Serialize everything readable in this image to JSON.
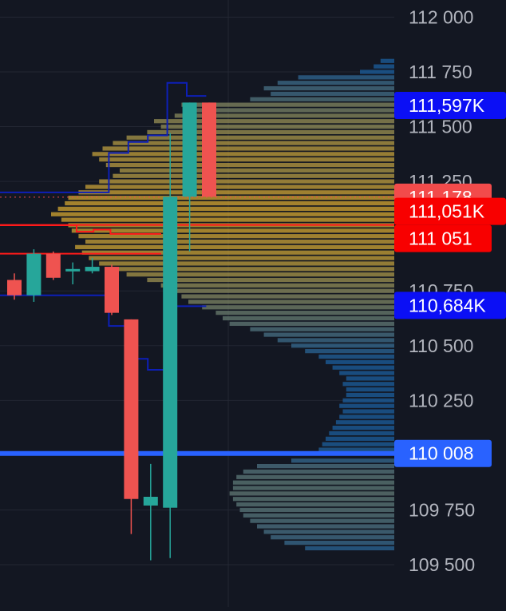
{
  "chart_data": {
    "type": "candlestick",
    "colors": {
      "background": "#131722",
      "grid": "#232733",
      "axis_text": "#b2b5be",
      "up": "#26a69a",
      "down": "#ef5350",
      "profile_high": "#d4a731",
      "profile_low": "#1c5f9e",
      "upper_band": "#0d1fb8",
      "lower_band": "#ff1a1a",
      "support_line": "#2962ff",
      "label_blue": "#0b0ff5",
      "label_red": "#f80000",
      "label_last": "#f24b4b",
      "label_support": "#2962ff"
    },
    "y_axis": {
      "range": [
        109480,
        112000
      ],
      "ticks": [
        {
          "value": 112000,
          "label": "112 000"
        },
        {
          "value": 111750,
          "label": "111 750"
        },
        {
          "value": 111500,
          "label": "111 500"
        },
        {
          "value": 111250,
          "label": "111 250"
        },
        {
          "value": 110750,
          "label": "110 750"
        },
        {
          "value": 110500,
          "label": "110 500"
        },
        {
          "value": 110250,
          "label": "110 250"
        },
        {
          "value": 109750,
          "label": "109 750"
        },
        {
          "value": 109500,
          "label": "109 500"
        }
      ]
    },
    "candles": [
      {
        "open": 110800,
        "close": 110730,
        "high": 110830,
        "low": 110710
      },
      {
        "open": 110730,
        "close": 110920,
        "high": 110940,
        "low": 110700
      },
      {
        "open": 110920,
        "close": 110810,
        "high": 110930,
        "low": 110800
      },
      {
        "open": 110840,
        "close": 110850,
        "high": 110880,
        "low": 110780
      },
      {
        "open": 110840,
        "close": 110860,
        "high": 110900,
        "low": 110830
      },
      {
        "open": 110860,
        "close": 110650,
        "high": 110870,
        "low": 110640
      },
      {
        "open": 110620,
        "close": 109800,
        "high": 110620,
        "low": 109640
      },
      {
        "open": 109770,
        "close": 109810,
        "high": 109960,
        "low": 109520
      },
      {
        "open": 109760,
        "close": 111180,
        "high": 111470,
        "low": 109530
      },
      {
        "open": 111180,
        "close": 111610,
        "high": 111610,
        "low": 110930
      },
      {
        "open": 111610,
        "close": 111180,
        "high": 111610,
        "low": 111180
      }
    ],
    "price_labels": [
      {
        "value": 111597,
        "label": "111,597K",
        "role": "upper_band"
      },
      {
        "value": 111178,
        "label": "111 178",
        "role": "last_price"
      },
      {
        "value": 111051,
        "label": "111,051K",
        "role": "lower_band"
      },
      {
        "value": 111051,
        "label": "111 051",
        "role": "lower_band_price"
      },
      {
        "value": 110684,
        "label": "110,684K",
        "role": "lower_channel"
      },
      {
        "value": 110008,
        "label": "110 008",
        "role": "support"
      }
    ],
    "last_price_line": 111178,
    "support_line": 110008,
    "upper_channel": [
      111200,
      111200,
      111200,
      111200,
      111200,
      111200,
      111380,
      111430,
      111460,
      111700,
      111640
    ],
    "lower_channel": [
      110730,
      110730,
      110730,
      110730,
      110730,
      110730,
      110590,
      110440,
      110390,
      110680,
      110680
    ],
    "band_upper": [
      111050,
      111050,
      111050,
      111050,
      111050,
      111020,
      111030,
      111010,
      111010,
      111010
    ],
    "band_lower": [
      110920,
      110920,
      110920,
      110920,
      110920,
      110920,
      110920,
      110920,
      110920,
      110920
    ],
    "volume_profile": [
      {
        "price": 111800,
        "vol": 0.04
      },
      {
        "price": 111775,
        "vol": 0.06
      },
      {
        "price": 111750,
        "vol": 0.1
      },
      {
        "price": 111725,
        "vol": 0.28
      },
      {
        "price": 111700,
        "vol": 0.34
      },
      {
        "price": 111675,
        "vol": 0.38
      },
      {
        "price": 111650,
        "vol": 0.36
      },
      {
        "price": 111625,
        "vol": 0.42
      },
      {
        "price": 111600,
        "vol": 0.62
      },
      {
        "price": 111575,
        "vol": 0.58
      },
      {
        "price": 111550,
        "vol": 0.64
      },
      {
        "price": 111525,
        "vol": 0.7
      },
      {
        "price": 111500,
        "vol": 0.68
      },
      {
        "price": 111475,
        "vol": 0.72
      },
      {
        "price": 111450,
        "vol": 0.78
      },
      {
        "price": 111425,
        "vol": 0.82
      },
      {
        "price": 111400,
        "vol": 0.85
      },
      {
        "price": 111375,
        "vol": 0.88
      },
      {
        "price": 111350,
        "vol": 0.86
      },
      {
        "price": 111325,
        "vol": 0.84
      },
      {
        "price": 111300,
        "vol": 0.8
      },
      {
        "price": 111275,
        "vol": 0.82
      },
      {
        "price": 111250,
        "vol": 0.86
      },
      {
        "price": 111225,
        "vol": 0.9
      },
      {
        "price": 111200,
        "vol": 0.92
      },
      {
        "price": 111175,
        "vol": 0.95
      },
      {
        "price": 111150,
        "vol": 0.96
      },
      {
        "price": 111125,
        "vol": 0.98
      },
      {
        "price": 111100,
        "vol": 1.0
      },
      {
        "price": 111075,
        "vol": 0.97
      },
      {
        "price": 111050,
        "vol": 0.95
      },
      {
        "price": 111025,
        "vol": 0.94
      },
      {
        "price": 111000,
        "vol": 0.92
      },
      {
        "price": 110975,
        "vol": 0.9
      },
      {
        "price": 110950,
        "vol": 0.93
      },
      {
        "price": 110925,
        "vol": 0.91
      },
      {
        "price": 110900,
        "vol": 0.89
      },
      {
        "price": 110875,
        "vol": 0.86
      },
      {
        "price": 110850,
        "vol": 0.82
      },
      {
        "price": 110825,
        "vol": 0.78
      },
      {
        "price": 110800,
        "vol": 0.72
      },
      {
        "price": 110775,
        "vol": 0.68
      },
      {
        "price": 110750,
        "vol": 0.65
      },
      {
        "price": 110725,
        "vol": 0.62
      },
      {
        "price": 110700,
        "vol": 0.6
      },
      {
        "price": 110675,
        "vol": 0.56
      },
      {
        "price": 110650,
        "vol": 0.52
      },
      {
        "price": 110625,
        "vol": 0.5
      },
      {
        "price": 110600,
        "vol": 0.48
      },
      {
        "price": 110575,
        "vol": 0.42
      },
      {
        "price": 110550,
        "vol": 0.38
      },
      {
        "price": 110525,
        "vol": 0.34
      },
      {
        "price": 110500,
        "vol": 0.3
      },
      {
        "price": 110475,
        "vol": 0.26
      },
      {
        "price": 110450,
        "vol": 0.22
      },
      {
        "price": 110425,
        "vol": 0.2
      },
      {
        "price": 110400,
        "vol": 0.18
      },
      {
        "price": 110375,
        "vol": 0.16
      },
      {
        "price": 110350,
        "vol": 0.14
      },
      {
        "price": 110325,
        "vol": 0.15
      },
      {
        "price": 110300,
        "vol": 0.14
      },
      {
        "price": 110275,
        "vol": 0.14
      },
      {
        "price": 110250,
        "vol": 0.15
      },
      {
        "price": 110225,
        "vol": 0.16
      },
      {
        "price": 110200,
        "vol": 0.15
      },
      {
        "price": 110175,
        "vol": 0.16
      },
      {
        "price": 110150,
        "vol": 0.17
      },
      {
        "price": 110125,
        "vol": 0.18
      },
      {
        "price": 110100,
        "vol": 0.19
      },
      {
        "price": 110075,
        "vol": 0.2
      },
      {
        "price": 110050,
        "vol": 0.21
      },
      {
        "price": 110025,
        "vol": 0.22
      },
      {
        "price": 109975,
        "vol": 0.3
      },
      {
        "price": 109950,
        "vol": 0.4
      },
      {
        "price": 109925,
        "vol": 0.44
      },
      {
        "price": 109900,
        "vol": 0.46
      },
      {
        "price": 109875,
        "vol": 0.47
      },
      {
        "price": 109850,
        "vol": 0.47
      },
      {
        "price": 109825,
        "vol": 0.48
      },
      {
        "price": 109800,
        "vol": 0.47
      },
      {
        "price": 109775,
        "vol": 0.46
      },
      {
        "price": 109750,
        "vol": 0.45
      },
      {
        "price": 109725,
        "vol": 0.44
      },
      {
        "price": 109700,
        "vol": 0.42
      },
      {
        "price": 109675,
        "vol": 0.4
      },
      {
        "price": 109650,
        "vol": 0.38
      },
      {
        "price": 109625,
        "vol": 0.36
      },
      {
        "price": 109600,
        "vol": 0.32
      },
      {
        "price": 109575,
        "vol": 0.26
      }
    ]
  }
}
